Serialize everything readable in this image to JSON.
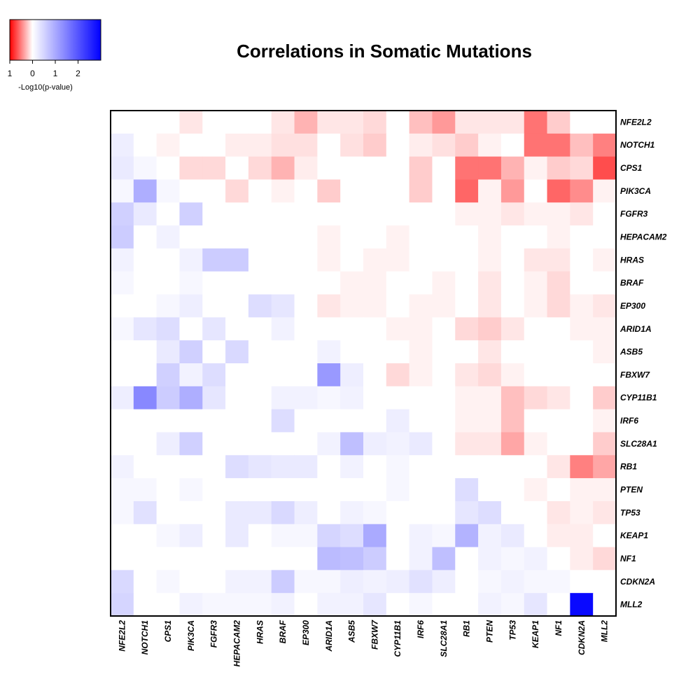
{
  "chart_data": {
    "type": "heatmap",
    "title": "Correlations in Somatic Mutations",
    "genes": [
      "NFE2L2",
      "NOTCH1",
      "CPS1",
      "PIK3CA",
      "FGFR3",
      "HEPACAM2",
      "HRAS",
      "BRAF",
      "EP300",
      "ARID1A",
      "ASB5",
      "FBXW7",
      "CYP11B1",
      "IRF6",
      "SLC28A1",
      "RB1",
      "PTEN",
      "TP53",
      "KEAP1",
      "NF1",
      "CDKN2A",
      "MLL2"
    ],
    "value_meaning": "signed -Log10(p-value); negative = red (mutual exclusivity), positive = blue (co-occurrence)",
    "matrix": [
      [
        0,
        0,
        0,
        -0.1,
        0,
        0,
        0,
        -0.1,
        -0.3,
        -0.1,
        -0.1,
        -0.15,
        0,
        -0.25,
        -0.4,
        -0.1,
        -0.1,
        -0.1,
        -0.55,
        -0.2,
        0,
        0
      ],
      [
        0.2,
        0,
        -0.05,
        0,
        0,
        -0.07,
        -0.07,
        -0.12,
        -0.12,
        0,
        -0.12,
        -0.2,
        0,
        -0.07,
        -0.12,
        -0.2,
        -0.05,
        0,
        -0.55,
        -0.55,
        -0.25,
        -0.5
      ],
      [
        0.25,
        0.1,
        0,
        -0.15,
        -0.15,
        0,
        -0.15,
        -0.3,
        -0.07,
        0,
        0,
        0,
        0,
        -0.2,
        0,
        -0.55,
        -0.55,
        -0.3,
        -0.05,
        -0.2,
        -0.15,
        -0.7
      ],
      [
        0.1,
        0.95,
        0.1,
        0,
        0,
        -0.15,
        0,
        -0.05,
        0,
        -0.2,
        0,
        0,
        0,
        -0.2,
        0,
        -0.6,
        -0.05,
        -0.4,
        0,
        -0.6,
        -0.45,
        -0.05
      ],
      [
        0.55,
        0.25,
        0,
        0.55,
        0,
        0,
        0,
        0,
        0,
        0,
        0,
        0,
        0,
        0,
        0,
        -0.05,
        -0.05,
        -0.1,
        -0.05,
        -0.05,
        -0.1,
        0
      ],
      [
        0.6,
        0,
        0.15,
        0,
        0,
        0,
        0,
        0,
        0,
        -0.05,
        0,
        0,
        -0.05,
        0,
        0,
        0,
        -0.05,
        0,
        0,
        -0.05,
        0,
        0
      ],
      [
        0.15,
        0,
        0,
        0.15,
        0.6,
        0.6,
        0,
        0,
        0,
        -0.05,
        0,
        -0.05,
        -0.05,
        0,
        0,
        0,
        -0.05,
        0,
        -0.1,
        -0.1,
        0,
        -0.05
      ],
      [
        0.1,
        0,
        0,
        0.1,
        0,
        0,
        0,
        0,
        0,
        0,
        -0.05,
        -0.05,
        0,
        0,
        -0.05,
        0,
        -0.1,
        0,
        -0.05,
        -0.15,
        0,
        0
      ],
      [
        0,
        0,
        0.1,
        0.2,
        0,
        0,
        0.4,
        0.3,
        0,
        -0.1,
        -0.05,
        -0.05,
        0,
        -0.05,
        -0.05,
        0,
        -0.1,
        0,
        -0.05,
        -0.15,
        -0.05,
        -0.1
      ],
      [
        0.1,
        0.3,
        0.4,
        0,
        0.3,
        0,
        0,
        0.15,
        0,
        0,
        0,
        0,
        -0.05,
        -0.05,
        0,
        -0.15,
        -0.2,
        -0.1,
        0,
        0,
        -0.05,
        -0.05
      ],
      [
        0,
        0,
        0.25,
        0.55,
        0,
        0.45,
        0,
        0,
        0,
        0.15,
        0,
        0,
        0,
        -0.05,
        0,
        0,
        -0.1,
        0,
        0,
        0,
        0,
        -0.05
      ],
      [
        0,
        0,
        0.55,
        0.15,
        0.4,
        0,
        0,
        0,
        0,
        1.2,
        0.2,
        0,
        -0.15,
        -0.05,
        0,
        -0.1,
        -0.15,
        -0.05,
        0,
        0,
        0,
        0
      ],
      [
        0.2,
        1.4,
        0.6,
        0.95,
        0.3,
        0,
        0,
        0.15,
        0.15,
        0.1,
        0.15,
        0,
        0,
        0,
        0,
        -0.05,
        -0.05,
        -0.25,
        -0.15,
        -0.1,
        0,
        -0.2
      ],
      [
        0,
        0,
        0,
        0,
        0,
        0,
        0,
        0.4,
        0,
        0,
        0,
        0,
        0.2,
        0,
        0,
        -0.05,
        -0.05,
        -0.25,
        0,
        0,
        0,
        -0.05
      ],
      [
        0,
        0,
        0.2,
        0.55,
        0,
        0,
        0,
        0,
        0,
        0.15,
        0.75,
        0.2,
        0.15,
        0.25,
        0,
        -0.1,
        -0.1,
        -0.35,
        -0.05,
        0,
        0,
        -0.2
      ],
      [
        0.15,
        0,
        0,
        0,
        0,
        0.4,
        0.3,
        0.25,
        0.25,
        0,
        0.15,
        0,
        0.1,
        0,
        0,
        0,
        0,
        0,
        0,
        -0.1,
        -0.5,
        -0.35
      ],
      [
        0.1,
        0.1,
        0,
        0.1,
        0,
        0,
        0,
        0,
        0,
        0,
        0,
        0,
        0.1,
        0,
        0,
        0.4,
        0,
        0,
        -0.05,
        0,
        -0.05,
        -0.05
      ],
      [
        0.1,
        0.35,
        0,
        0,
        0,
        0.25,
        0.25,
        0.45,
        0.2,
        0,
        0.15,
        0.1,
        0,
        0,
        0,
        0.3,
        0.4,
        0,
        0,
        -0.1,
        -0.05,
        -0.1
      ],
      [
        0,
        0,
        0.1,
        0.2,
        0,
        0.25,
        0,
        0.1,
        0.1,
        0.5,
        0.4,
        1.0,
        0,
        0.15,
        0.1,
        0.9,
        0.15,
        0.25,
        0,
        -0.07,
        -0.07,
        0
      ],
      [
        0,
        0,
        0,
        0,
        0,
        0,
        0,
        0,
        0,
        0.8,
        0.75,
        0.6,
        0,
        0.15,
        0.75,
        0,
        0.15,
        0.1,
        0.15,
        0,
        -0.07,
        -0.15
      ],
      [
        0.45,
        0,
        0.1,
        0,
        0,
        0.15,
        0.15,
        0.6,
        0.1,
        0.1,
        0.2,
        0.15,
        0.2,
        0.35,
        0.2,
        0,
        0.1,
        0.15,
        0.1,
        0.1,
        0,
        0
      ],
      [
        0.5,
        0,
        0,
        0.15,
        0.1,
        0.1,
        0.1,
        0.15,
        0,
        0.15,
        0.15,
        0.3,
        0,
        0.1,
        0,
        0,
        0.15,
        0.1,
        0.3,
        0,
        2.9,
        0
      ]
    ],
    "legend": {
      "caption": "-Log10(p-value)",
      "ticks": [
        "1",
        "0",
        "1",
        "2"
      ],
      "tick_values": [
        -1,
        0,
        1,
        2
      ],
      "range": [
        -1,
        3
      ],
      "colors": {
        "negative": "#ff0000",
        "zero": "#ffffff",
        "positive": "#0000ff"
      }
    }
  }
}
